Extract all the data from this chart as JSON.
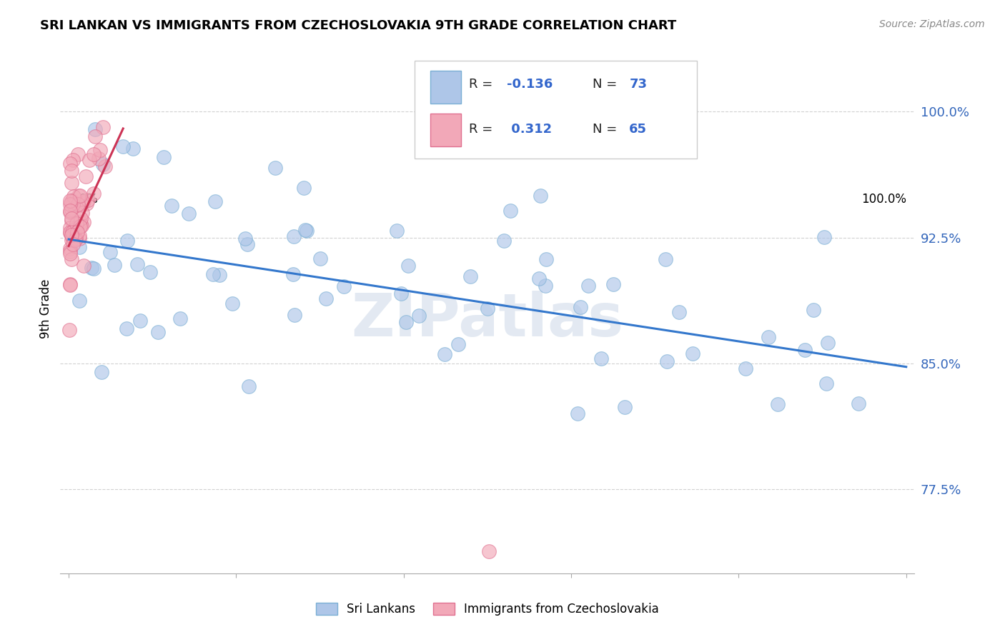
{
  "title": "SRI LANKAN VS IMMIGRANTS FROM CZECHOSLOVAKIA 9TH GRADE CORRELATION CHART",
  "source": "Source: ZipAtlas.com",
  "ylabel": "9th Grade",
  "y_ticks": [
    0.775,
    0.85,
    0.925,
    1.0
  ],
  "y_tick_labels": [
    "77.5%",
    "85.0%",
    "92.5%",
    "100.0%"
  ],
  "x_lim": [
    -0.01,
    1.01
  ],
  "y_lim": [
    0.725,
    1.04
  ],
  "blue_color": "#aec6e8",
  "pink_color": "#f2a8b8",
  "blue_edge": "#7aafd4",
  "pink_edge": "#e07090",
  "trend_blue": "#3377cc",
  "trend_pink": "#cc3355",
  "legend_label_blue": "Sri Lankans",
  "legend_label_pink": "Immigrants from Czechoslovakia",
  "watermark": "ZIPatlas",
  "blue_trend_x": [
    0.0,
    1.0
  ],
  "blue_trend_y": [
    0.924,
    0.848
  ],
  "pink_trend_x": [
    0.0,
    0.065
  ],
  "pink_trend_y": [
    0.92,
    0.99
  ]
}
